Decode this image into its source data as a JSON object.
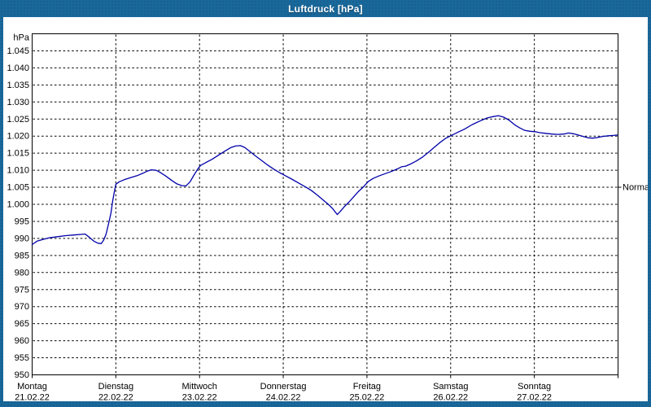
{
  "window": {
    "title": "Luftdruck [hPa]"
  },
  "colors": {
    "frame": "#19689B",
    "plot_background": "#FFFFFF",
    "grid": "#000000",
    "axis": "#000000",
    "line": "#0000AA",
    "title_text": "#FFFFFF",
    "label_text": "#000000"
  },
  "chart_data": {
    "type": "line",
    "title": "Luftdruck [hPa]",
    "ylabel": "hPa",
    "ylim": [
      950,
      1050
    ],
    "grid": "dashed",
    "y_axis": {
      "unit_label": "hPa",
      "tick_step": 5,
      "ticks": [
        {
          "label": "1.045",
          "value": 1045
        },
        {
          "label": "1.040",
          "value": 1040
        },
        {
          "label": "1.035",
          "value": 1035
        },
        {
          "label": "1.030",
          "value": 1030
        },
        {
          "label": "1.025",
          "value": 1025
        },
        {
          "label": "1.020",
          "value": 1020
        },
        {
          "label": "1.015",
          "value": 1015
        },
        {
          "label": "1.010",
          "value": 1010
        },
        {
          "label": "1.005",
          "value": 1005
        },
        {
          "label": "1.000",
          "value": 1000
        },
        {
          "label": "995",
          "value": 995
        },
        {
          "label": "990",
          "value": 990
        },
        {
          "label": "985",
          "value": 985
        },
        {
          "label": "980",
          "value": 980
        },
        {
          "label": "975",
          "value": 975
        },
        {
          "label": "970",
          "value": 970
        },
        {
          "label": "965",
          "value": 965
        },
        {
          "label": "960",
          "value": 960
        },
        {
          "label": "955",
          "value": 955
        },
        {
          "label": "950",
          "value": 950
        }
      ]
    },
    "x_axis": {
      "total_hours": 168,
      "hours_per_day": 24,
      "days": [
        {
          "name": "Montag",
          "date": "21.02.22"
        },
        {
          "name": "Dienstag",
          "date": "22.02.22"
        },
        {
          "name": "Mittwoch",
          "date": "23.02.22"
        },
        {
          "name": "Donnerstag",
          "date": "24.02.22"
        },
        {
          "name": "Freitag",
          "date": "25.02.22"
        },
        {
          "name": "Samstag",
          "date": "26.02.22"
        },
        {
          "name": "Sonntag",
          "date": "27.02.22"
        }
      ]
    },
    "annotations": {
      "normal": {
        "label": "Normal",
        "value": 1005
      }
    },
    "series": [
      {
        "name": "Luftdruck",
        "color": "#0000AA",
        "points": [
          [
            0.0,
            988.2
          ],
          [
            1.4,
            989.2
          ],
          [
            3.0,
            989.7
          ],
          [
            4.9,
            990.2
          ],
          [
            7.2,
            990.5
          ],
          [
            9.6,
            990.8
          ],
          [
            11.9,
            991.0
          ],
          [
            14.2,
            991.2
          ],
          [
            15.2,
            991.3
          ],
          [
            16.3,
            990.4
          ],
          [
            17.7,
            989.2
          ],
          [
            18.9,
            988.6
          ],
          [
            19.8,
            988.5
          ],
          [
            20.5,
            989.5
          ],
          [
            21.2,
            991.3
          ],
          [
            21.9,
            994.3
          ],
          [
            22.6,
            997.5
          ],
          [
            23.1,
            1001.0
          ],
          [
            23.6,
            1003.8
          ],
          [
            24.0,
            1005.9
          ],
          [
            25.0,
            1006.6
          ],
          [
            26.4,
            1007.2
          ],
          [
            28.2,
            1007.8
          ],
          [
            30.1,
            1008.4
          ],
          [
            31.7,
            1009.1
          ],
          [
            32.9,
            1009.7
          ],
          [
            34.1,
            1010.1
          ],
          [
            35.5,
            1010.0
          ],
          [
            36.6,
            1009.4
          ],
          [
            38.3,
            1008.3
          ],
          [
            39.9,
            1007.1
          ],
          [
            41.5,
            1006.0
          ],
          [
            42.9,
            1005.5
          ],
          [
            44.1,
            1005.4
          ],
          [
            45.3,
            1006.6
          ],
          [
            46.4,
            1008.6
          ],
          [
            47.4,
            1010.2
          ],
          [
            48.3,
            1011.4
          ],
          [
            49.7,
            1012.2
          ],
          [
            51.6,
            1013.2
          ],
          [
            53.4,
            1014.4
          ],
          [
            55.3,
            1015.6
          ],
          [
            56.9,
            1016.6
          ],
          [
            58.3,
            1017.1
          ],
          [
            59.7,
            1017.2
          ],
          [
            60.9,
            1016.7
          ],
          [
            62.3,
            1015.6
          ],
          [
            63.9,
            1014.3
          ],
          [
            65.6,
            1013.0
          ],
          [
            67.4,
            1011.6
          ],
          [
            69.3,
            1010.3
          ],
          [
            70.9,
            1009.3
          ],
          [
            72.6,
            1008.4
          ],
          [
            74.4,
            1007.4
          ],
          [
            76.3,
            1006.3
          ],
          [
            78.2,
            1005.2
          ],
          [
            80.0,
            1004.1
          ],
          [
            81.9,
            1002.6
          ],
          [
            83.5,
            1001.2
          ],
          [
            84.9,
            1000.0
          ],
          [
            86.1,
            998.8
          ],
          [
            86.8,
            997.9
          ],
          [
            87.5,
            997.0
          ],
          [
            88.4,
            998.0
          ],
          [
            89.6,
            999.4
          ],
          [
            90.8,
            1000.6
          ],
          [
            92.2,
            1002.2
          ],
          [
            93.6,
            1003.8
          ],
          [
            95.0,
            1005.1
          ],
          [
            96.4,
            1006.7
          ],
          [
            97.8,
            1007.6
          ],
          [
            99.4,
            1008.3
          ],
          [
            101.0,
            1008.9
          ],
          [
            102.9,
            1009.6
          ],
          [
            104.8,
            1010.4
          ],
          [
            105.9,
            1011.0
          ],
          [
            107.1,
            1011.2
          ],
          [
            108.7,
            1011.9
          ],
          [
            110.3,
            1012.8
          ],
          [
            112.0,
            1013.9
          ],
          [
            113.6,
            1015.2
          ],
          [
            115.3,
            1016.7
          ],
          [
            116.9,
            1018.1
          ],
          [
            118.5,
            1019.3
          ],
          [
            120.2,
            1020.2
          ],
          [
            122.0,
            1021.1
          ],
          [
            123.9,
            1022.0
          ],
          [
            126.2,
            1023.4
          ],
          [
            128.6,
            1024.5
          ],
          [
            130.4,
            1025.3
          ],
          [
            132.1,
            1025.7
          ],
          [
            133.7,
            1026.0
          ],
          [
            135.1,
            1025.6
          ],
          [
            136.7,
            1024.7
          ],
          [
            138.4,
            1023.3
          ],
          [
            139.8,
            1022.4
          ],
          [
            141.2,
            1021.7
          ],
          [
            142.8,
            1021.4
          ],
          [
            144.2,
            1021.3
          ],
          [
            145.6,
            1021.0
          ],
          [
            147.2,
            1020.8
          ],
          [
            149.1,
            1020.6
          ],
          [
            150.7,
            1020.5
          ],
          [
            152.4,
            1020.6
          ],
          [
            153.8,
            1020.9
          ],
          [
            155.2,
            1020.7
          ],
          [
            156.6,
            1020.3
          ],
          [
            158.0,
            1019.9
          ],
          [
            159.4,
            1019.5
          ],
          [
            160.8,
            1019.4
          ],
          [
            162.2,
            1019.6
          ],
          [
            163.6,
            1019.9
          ],
          [
            165.2,
            1020.1
          ],
          [
            166.6,
            1020.2
          ],
          [
            167.8,
            1020.3
          ]
        ]
      }
    ]
  }
}
